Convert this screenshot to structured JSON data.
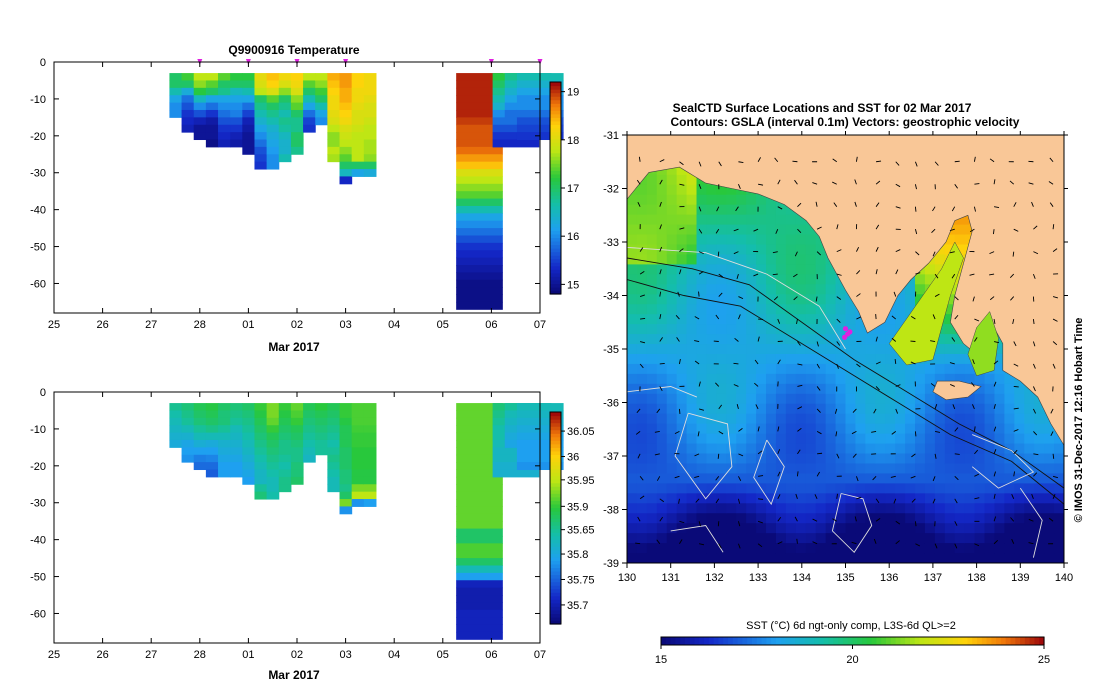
{
  "chart_data": [
    {
      "type": "heatmap",
      "name": "temperature-section",
      "title": "Q9900916  Temperature",
      "xlabel": "Mar 2017",
      "x_ticks": [
        "25",
        "26",
        "27",
        "28",
        "01",
        "02",
        "03",
        "04",
        "05",
        "06",
        "07"
      ],
      "y_ticks": [
        "0",
        "-10",
        "-20",
        "-30",
        "-40",
        "-50",
        "-60"
      ],
      "xlim": [
        0,
        10
      ],
      "ylim": [
        -68,
        0
      ],
      "colorbar": {
        "min": 14.8,
        "max": 19.2,
        "ticks": [
          "15",
          "16",
          "17",
          "18",
          "19"
        ],
        "tick_values": [
          15,
          16,
          17,
          18,
          19
        ]
      },
      "profile_markers_x": [
        3.0,
        4.0,
        5.0,
        6.0,
        9.0,
        10.0
      ],
      "profiles": [
        {
          "x": 2.5,
          "v": [
            17.0,
            17.0,
            16.6,
            16.2,
            16.0,
            16.0
          ]
        },
        {
          "x": 2.75,
          "v": [
            17.3,
            17.0,
            16.3,
            15.8,
            15.6,
            15.4,
            15.3,
            15.2
          ]
        },
        {
          "x": 3.0,
          "v": [
            17.8,
            17.6,
            17.2,
            16.5,
            16.0,
            15.6,
            15.2,
            15.0,
            15.0
          ]
        },
        {
          "x": 3.25,
          "v": [
            17.8,
            17.4,
            17.0,
            16.2,
            15.8,
            15.4,
            15.1,
            15.0,
            15.0,
            14.9
          ]
        },
        {
          "x": 3.5,
          "v": [
            17.4,
            17.0,
            16.8,
            16.2,
            16.0,
            15.8,
            15.6,
            15.4,
            15.3,
            15.2
          ]
        },
        {
          "x": 3.75,
          "v": [
            17.2,
            17.0,
            16.5,
            16.2,
            16.0,
            15.9,
            15.6,
            15.4,
            15.2,
            15.1
          ]
        },
        {
          "x": 4.0,
          "v": [
            17.2,
            17.0,
            16.6,
            16.2,
            15.8,
            15.5,
            15.2,
            15.1,
            15.0,
            15.0,
            15.0
          ]
        },
        {
          "x": 4.25,
          "v": [
            18.1,
            18.0,
            17.8,
            17.0,
            16.8,
            16.6,
            16.4,
            16.2,
            16.0,
            15.8,
            15.6,
            15.5,
            15.4
          ]
        },
        {
          "x": 4.5,
          "v": [
            18.4,
            18.3,
            18.0,
            17.4,
            17.0,
            16.8,
            16.6,
            16.4,
            16.3,
            16.2,
            16.1,
            16.0,
            16.0
          ]
        },
        {
          "x": 4.75,
          "v": [
            18.2,
            18.0,
            17.6,
            17.0,
            16.8,
            16.6,
            16.8,
            16.7,
            16.5,
            16.4,
            16.4,
            16.6
          ]
        },
        {
          "x": 5.0,
          "v": [
            18.3,
            18.2,
            18.0,
            17.6,
            17.4,
            17.0,
            16.8,
            16.8,
            17.0,
            17.0,
            16.8
          ]
        },
        {
          "x": 5.25,
          "v": [
            17.8,
            17.4,
            17.0,
            16.6,
            16.2,
            15.8,
            15.5,
            15.4
          ]
        },
        {
          "x": 5.5,
          "v": [
            17.8,
            17.6,
            17.3,
            17.0,
            16.6,
            16.2,
            16.0
          ]
        },
        {
          "x": 5.75,
          "v": [
            18.5,
            18.4,
            18.3,
            18.2,
            18.2,
            18.1,
            18.0,
            17.8,
            17.6,
            17.6,
            17.8,
            17.7
          ]
        },
        {
          "x": 6.0,
          "v": [
            18.6,
            18.6,
            18.5,
            18.5,
            18.4,
            18.3,
            18.2,
            18.0,
            17.9,
            17.8,
            17.6,
            17.4,
            17.0,
            16.5,
            15.3
          ]
        },
        {
          "x": 6.25,
          "v": [
            18.3,
            18.3,
            18.2,
            18.2,
            18.1,
            18.0,
            18.0,
            17.9,
            17.8,
            17.8,
            17.8,
            17.8,
            17.0,
            16.2
          ]
        },
        {
          "x": 6.5,
          "v": [
            18.2,
            18.2,
            18.2,
            18.1,
            18.0,
            18.0,
            17.9,
            17.8,
            17.8,
            17.7,
            17.7,
            17.6,
            17.0,
            16.3
          ]
        },
        {
          "x": 8.75,
          "v": [
            19.1,
            19.1,
            19.1,
            19.1,
            19.1,
            19.1,
            19.0,
            18.9,
            18.9,
            18.9,
            18.8,
            18.6,
            18.4,
            18.0,
            17.8,
            17.6,
            17.4,
            17.0,
            16.6,
            16.2,
            16.0,
            15.8,
            15.6,
            15.4,
            15.3,
            15.2,
            15.1,
            15.0,
            14.9,
            14.9,
            14.9,
            14.9
          ]
        },
        {
          "x": 9.5,
          "v": [
            17.2,
            17.0,
            16.8,
            16.6,
            16.4,
            16.0,
            15.8,
            15.6,
            15.4,
            15.3
          ]
        },
        {
          "x": 9.75,
          "v": [
            16.8,
            16.6,
            16.4,
            16.2,
            16.0,
            15.8
          ]
        },
        {
          "x": 10.0,
          "v": [
            16.6,
            16.4,
            16.2,
            16.0,
            16.0,
            15.8,
            15.6,
            15.5,
            15.4
          ]
        }
      ]
    },
    {
      "type": "heatmap",
      "name": "salinity-section",
      "xlabel": "Mar 2017",
      "x_ticks": [
        "25",
        "26",
        "27",
        "28",
        "01",
        "02",
        "03",
        "04",
        "05",
        "06",
        "07"
      ],
      "y_ticks": [
        "0",
        "-10",
        "-20",
        "-30",
        "-40",
        "-50",
        "-60"
      ],
      "xlim": [
        0,
        10
      ],
      "ylim": [
        -68,
        0
      ],
      "colorbar": {
        "min": 0,
        "max": 1,
        "ticks": [
          "36.05",
          "36",
          "35.95",
          "35.9",
          "35.65",
          "35.8",
          "35.75",
          "35.7"
        ],
        "tick_values": [
          0.91,
          0.79,
          0.68,
          0.555,
          0.445,
          0.33,
          0.21,
          0.09
        ]
      },
      "profiles": [
        {
          "x": 2.5,
          "v": [
            0.45,
            0.42,
            0.4,
            0.38,
            0.36,
            0.34
          ]
        },
        {
          "x": 2.75,
          "v": [
            0.48,
            0.46,
            0.44,
            0.4,
            0.36,
            0.32,
            0.3,
            0.28
          ]
        },
        {
          "x": 3.0,
          "v": [
            0.52,
            0.5,
            0.48,
            0.44,
            0.4,
            0.35,
            0.3,
            0.25,
            0.22
          ]
        },
        {
          "x": 3.25,
          "v": [
            0.54,
            0.52,
            0.5,
            0.46,
            0.4,
            0.34,
            0.3,
            0.26,
            0.22,
            0.2
          ]
        },
        {
          "x": 3.5,
          "v": [
            0.5,
            0.48,
            0.48,
            0.44,
            0.4,
            0.36,
            0.34,
            0.32,
            0.3,
            0.3
          ]
        },
        {
          "x": 3.75,
          "v": [
            0.48,
            0.46,
            0.44,
            0.4,
            0.38,
            0.36,
            0.34,
            0.32,
            0.3,
            0.3
          ]
        },
        {
          "x": 4.0,
          "v": [
            0.5,
            0.48,
            0.46,
            0.44,
            0.42,
            0.4,
            0.38,
            0.36,
            0.34,
            0.32,
            0.3
          ]
        },
        {
          "x": 4.25,
          "v": [
            0.56,
            0.54,
            0.52,
            0.5,
            0.48,
            0.46,
            0.44,
            0.42,
            0.4,
            0.38,
            0.38,
            0.44,
            0.48
          ]
        },
        {
          "x": 4.5,
          "v": [
            0.62,
            0.62,
            0.6,
            0.56,
            0.52,
            0.5,
            0.48,
            0.46,
            0.44,
            0.42,
            0.4,
            0.4,
            0.42
          ]
        },
        {
          "x": 4.75,
          "v": [
            0.56,
            0.54,
            0.52,
            0.5,
            0.48,
            0.46,
            0.46,
            0.44,
            0.42,
            0.44,
            0.46,
            0.46
          ]
        },
        {
          "x": 5.0,
          "v": [
            0.6,
            0.58,
            0.56,
            0.52,
            0.5,
            0.48,
            0.46,
            0.46,
            0.48,
            0.48,
            0.5
          ]
        },
        {
          "x": 5.25,
          "v": [
            0.52,
            0.5,
            0.48,
            0.46,
            0.44,
            0.42,
            0.4,
            0.38
          ]
        },
        {
          "x": 5.5,
          "v": [
            0.55,
            0.52,
            0.5,
            0.48,
            0.46,
            0.44,
            0.44
          ]
        },
        {
          "x": 5.75,
          "v": [
            0.52,
            0.5,
            0.48,
            0.46,
            0.44,
            0.42,
            0.44,
            0.46,
            0.44,
            0.42,
            0.4,
            0.4
          ]
        },
        {
          "x": 6.0,
          "v": [
            0.56,
            0.56,
            0.54,
            0.52,
            0.52,
            0.52,
            0.5,
            0.5,
            0.5,
            0.48,
            0.48,
            0.46,
            0.5,
            0.62,
            0.28
          ]
        },
        {
          "x": 6.25,
          "v": [
            0.58,
            0.58,
            0.58,
            0.57,
            0.56,
            0.56,
            0.55,
            0.55,
            0.55,
            0.54,
            0.54,
            0.62,
            0.68,
            0.28
          ]
        },
        {
          "x": 6.5,
          "v": [
            0.58,
            0.58,
            0.58,
            0.57,
            0.56,
            0.56,
            0.55,
            0.55,
            0.55,
            0.54,
            0.54,
            0.62,
            0.68,
            0.3
          ]
        },
        {
          "x": 8.75,
          "v": [
            0.6,
            0.6,
            0.6,
            0.6,
            0.6,
            0.6,
            0.6,
            0.6,
            0.6,
            0.6,
            0.6,
            0.6,
            0.6,
            0.6,
            0.6,
            0.6,
            0.6,
            0.5,
            0.5,
            0.58,
            0.58,
            0.5,
            0.4,
            0.3,
            0.1,
            0.08,
            0.08,
            0.08,
            0.1,
            0.1,
            0.1,
            0.1
          ]
        },
        {
          "x": 9.5,
          "v": [
            0.48,
            0.46,
            0.44,
            0.42,
            0.42,
            0.4,
            0.38,
            0.38,
            0.36,
            0.36
          ]
        },
        {
          "x": 9.75,
          "v": [
            0.44,
            0.4,
            0.38,
            0.36,
            0.34,
            0.32
          ]
        },
        {
          "x": 10.0,
          "v": [
            0.4,
            0.38,
            0.36,
            0.34,
            0.32,
            0.3,
            0.3,
            0.3,
            0.28
          ]
        }
      ]
    },
    {
      "type": "heatmap",
      "name": "sst-map",
      "title": "SealCTD Surface Locations and SST for 02 Mar 2017",
      "subtitle": "Contours: GSLA (interval 0.1m) Vectors: geostrophic velocity",
      "x_ticks": [
        "130",
        "131",
        "132",
        "133",
        "134",
        "135",
        "136",
        "137",
        "138",
        "139",
        "140"
      ],
      "y_ticks": [
        "-31",
        "-32",
        "-33",
        "-34",
        "-35",
        "-36",
        "-37",
        "-38",
        "-39"
      ],
      "xlim": [
        130,
        140
      ],
      "ylim": [
        -39,
        -31
      ],
      "colorbar": {
        "label": "SST (°C) 6d ngt-only comp, L3S-6d QL>=2",
        "min": 15,
        "max": 25,
        "ticks": [
          "15",
          "20",
          "25"
        ]
      },
      "seal_locations": [
        [
          135.05,
          -34.72
        ],
        [
          135.0,
          -34.62
        ],
        [
          135.1,
          -34.68
        ],
        [
          134.98,
          -34.78
        ]
      ],
      "side_label": "© IMOS 31-Dec-2017 12:16 Hobart Time",
      "land_color": "#f9c797",
      "coast_outline": [
        [
          130,
          -32.2
        ],
        [
          130.5,
          -31.7
        ],
        [
          131.2,
          -31.6
        ],
        [
          131.8,
          -31.9
        ],
        [
          132.4,
          -32.0
        ],
        [
          133.0,
          -32.1
        ],
        [
          133.6,
          -32.3
        ],
        [
          134.1,
          -32.6
        ],
        [
          134.4,
          -32.9
        ],
        [
          134.6,
          -33.3
        ],
        [
          135.0,
          -33.9
        ],
        [
          135.3,
          -34.3
        ],
        [
          135.5,
          -34.7
        ],
        [
          135.9,
          -34.5
        ],
        [
          136.2,
          -34.0
        ],
        [
          136.5,
          -33.7
        ],
        [
          136.9,
          -33.4
        ],
        [
          137.3,
          -33.0
        ],
        [
          137.5,
          -32.6
        ],
        [
          137.8,
          -32.5
        ],
        [
          137.9,
          -32.8
        ],
        [
          137.7,
          -33.4
        ],
        [
          137.5,
          -34.0
        ],
        [
          137.4,
          -34.5
        ],
        [
          137.7,
          -34.9
        ],
        [
          138.0,
          -35.1
        ],
        [
          138.2,
          -34.8
        ],
        [
          138.4,
          -34.6
        ],
        [
          138.6,
          -34.9
        ],
        [
          138.6,
          -35.4
        ],
        [
          139.0,
          -35.6
        ],
        [
          139.4,
          -35.9
        ],
        [
          139.7,
          -36.4
        ],
        [
          140,
          -36.8
        ],
        [
          140,
          -31
        ],
        [
          130,
          -31
        ]
      ],
      "eyre_peninsula_coast": [
        [
          130,
          -31
        ],
        [
          140,
          -31
        ]
      ],
      "kangaroo_island": [
        [
          137.1,
          -35.6
        ],
        [
          137.6,
          -35.6
        ],
        [
          138.1,
          -35.7
        ],
        [
          137.8,
          -35.9
        ],
        [
          137.3,
          -35.95
        ],
        [
          137.0,
          -35.8
        ]
      ]
    }
  ]
}
